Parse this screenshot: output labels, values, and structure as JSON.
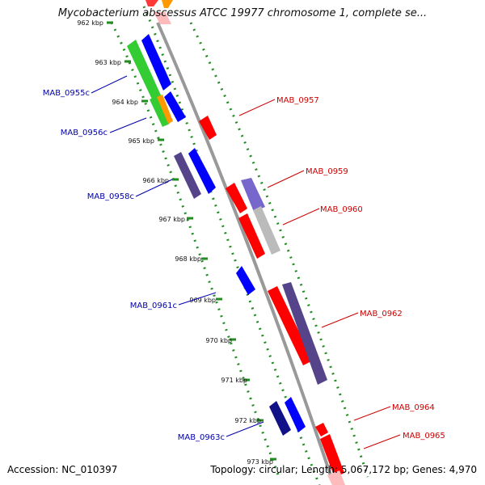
{
  "title": "Mycobacterium abscessus ATCC 19977 chromosome 1, complete se...",
  "footer": {
    "accession": "Accession: NC_010397",
    "stats": "Topology: circular; Length: 5,067,172 bp; Genes: 4,970"
  },
  "colors": {
    "backbone": "#8c8c8c",
    "dots": "#228b22",
    "forward_gene": "#ff0000",
    "reverse_gene": "#0000ff",
    "forward_label": "#cc0000",
    "reverse_label": "#0000aa",
    "rna_green": "#33cc33",
    "orange": "#ff9900",
    "purple": "#55448a"
  },
  "ruler_labels": [
    "962 kbp",
    "963 kbp",
    "964 kbp",
    "965 kbp",
    "966 kbp",
    "967 kbp",
    "968 kbp",
    "969 kbp",
    "970 kbp",
    "971 kbp",
    "972 kbp",
    "973 kbp"
  ],
  "gene_labels": {
    "reverse": [
      "MAB_0955c",
      "MAB_0956c",
      "MAB_0958c",
      "MAB_0961c",
      "MAB_0963c"
    ],
    "forward": [
      "MAB_0957",
      "MAB_0959",
      "MAB_0960",
      "MAB_0962",
      "MAB_0964",
      "MAB_0965"
    ]
  }
}
